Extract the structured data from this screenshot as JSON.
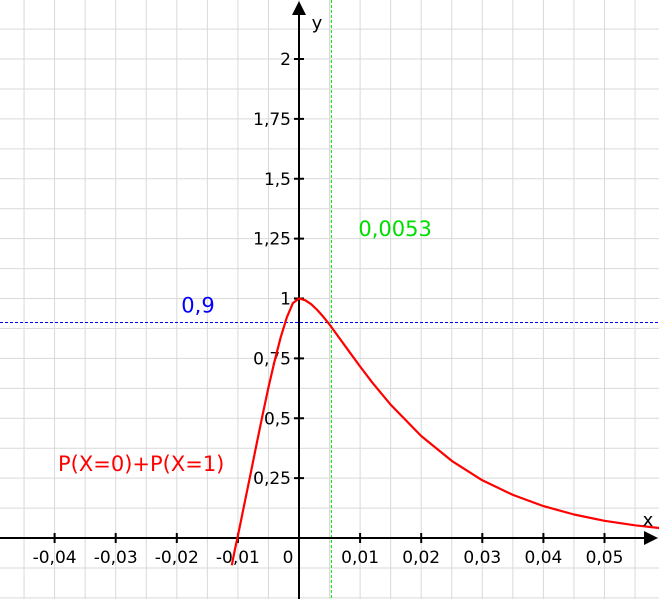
{
  "chart_data": {
    "type": "line",
    "title": "",
    "xlabel": "x",
    "ylabel": "y",
    "xlim": [
      -0.05,
      0.06
    ],
    "ylim": [
      -0.1,
      2.3
    ],
    "grid": true,
    "x_ticks": [
      -0.04,
      -0.03,
      -0.02,
      -0.01,
      0,
      0.01,
      0.02,
      0.03,
      0.04,
      0.05
    ],
    "x_tick_labels": [
      "-0,04",
      "-0,03",
      "-0,02",
      "-0,01",
      "0",
      "0,01",
      "0,02",
      "0,03",
      "0,04",
      "0,05"
    ],
    "y_ticks": [
      0.25,
      0.5,
      0.75,
      1,
      1.25,
      1.5,
      1.75,
      2
    ],
    "y_tick_labels": [
      "0,25",
      "0,5",
      "0,75",
      "1",
      "1,25",
      "1,5",
      "1,75",
      "2"
    ],
    "series": [
      {
        "name": "P(X=0)+P(X=1)",
        "color": "#ff0000",
        "x": [
          -0.011,
          -0.0105,
          -0.01,
          -0.009,
          -0.008,
          -0.007,
          -0.006,
          -0.005,
          -0.004,
          -0.003,
          -0.002,
          -0.001,
          0,
          0.001,
          0.002,
          0.003,
          0.004,
          0.005,
          0.006,
          0.008,
          0.01,
          0.012,
          0.015,
          0.02,
          0.025,
          0.03,
          0.035,
          0.04,
          0.045,
          0.05,
          0.055,
          0.06
        ],
        "y": [
          -0.114,
          -0.05,
          0.009,
          0.134,
          0.258,
          0.384,
          0.508,
          0.628,
          0.739,
          0.838,
          0.921,
          0.981,
          1.0,
          0.993,
          0.976,
          0.952,
          0.923,
          0.891,
          0.856,
          0.786,
          0.716,
          0.649,
          0.557,
          0.426,
          0.322,
          0.241,
          0.18,
          0.133,
          0.098,
          0.072,
          0.053,
          0.039
        ]
      }
    ],
    "reference_lines": [
      {
        "orientation": "horizontal",
        "value": 0.9,
        "label": "0,9",
        "color": "#0000ff"
      },
      {
        "orientation": "vertical",
        "value": 0.0053,
        "label": "0,0053",
        "color": "#00dd00"
      }
    ],
    "annotations": [
      {
        "text": "P(X=0)+P(X=1)",
        "color": "#ff0000"
      }
    ]
  }
}
